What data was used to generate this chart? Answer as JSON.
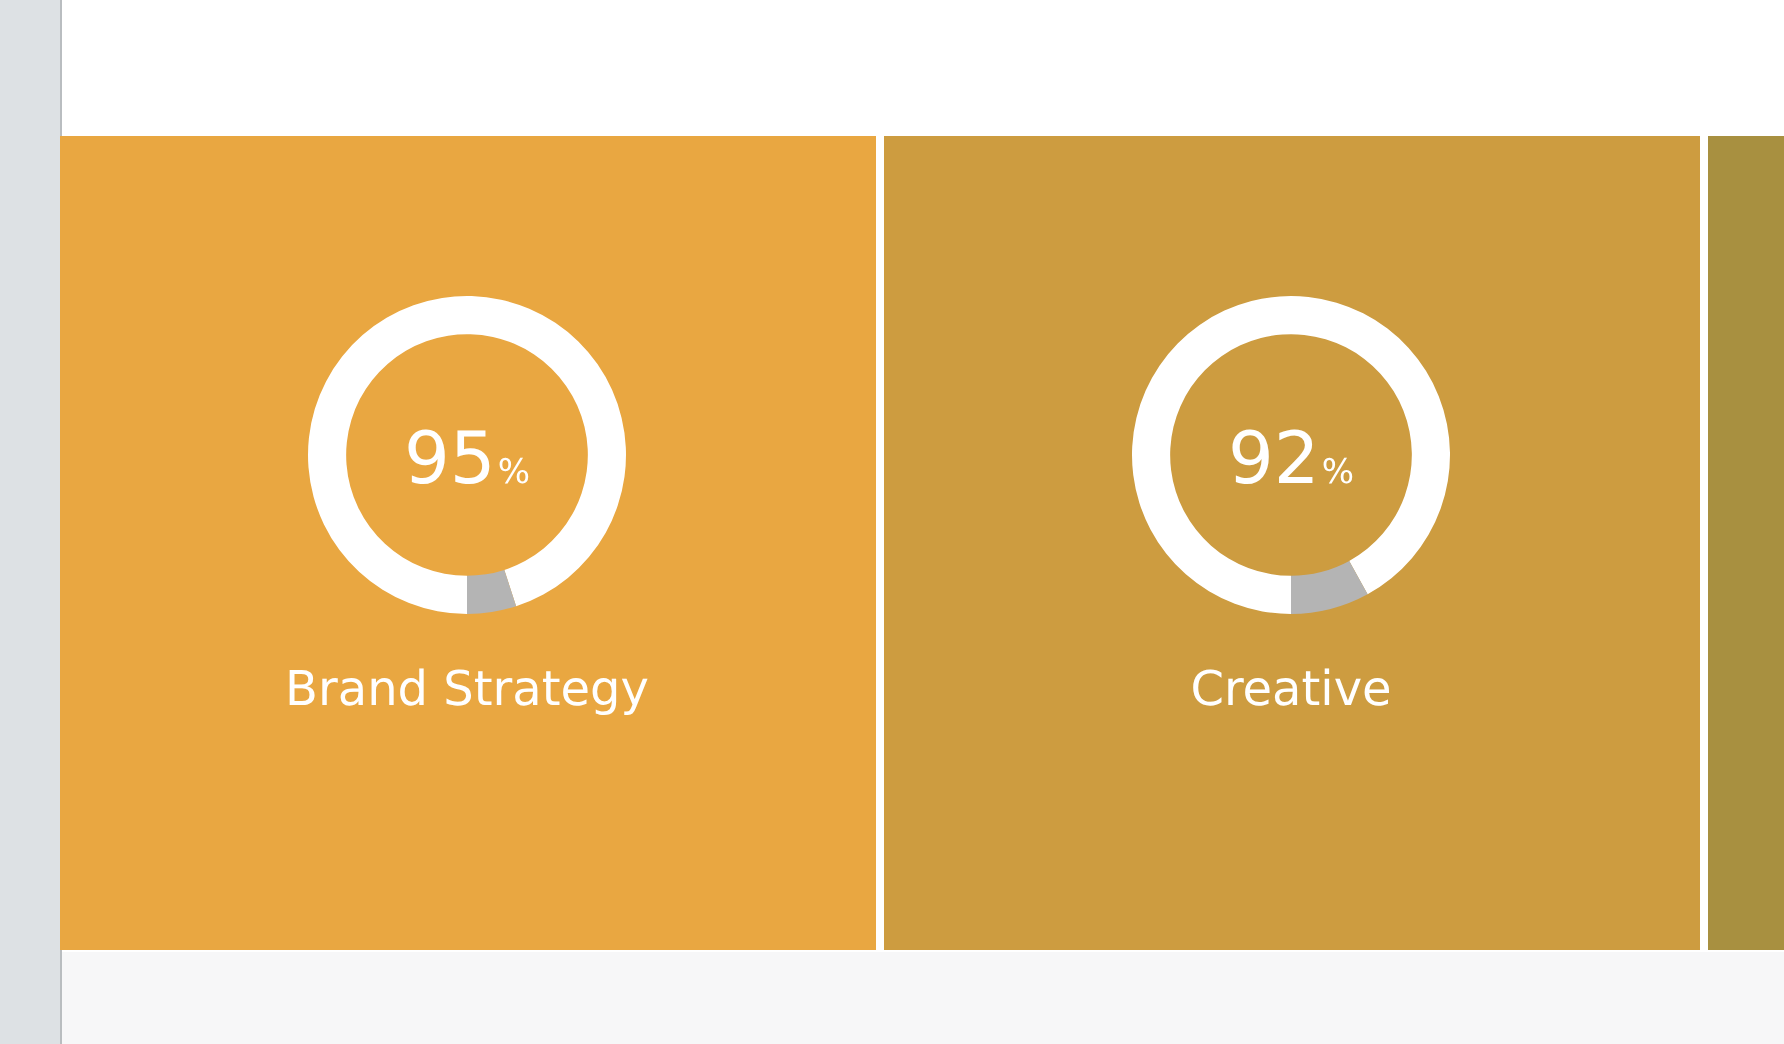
{
  "chart_data": [
    {
      "type": "donut",
      "title": "Brand Strategy",
      "categories": [
        null,
        null
      ],
      "values": [
        95,
        5
      ],
      "colors": [
        "#ffffff",
        "#b4b4b4"
      ],
      "value_labels": [
        "95%",
        null
      ]
    },
    {
      "type": "donut",
      "title": "Creative",
      "categories": [
        null,
        null
      ],
      "values": [
        92,
        8
      ],
      "colors": [
        "#ffffff",
        "#b4b4b4"
      ],
      "value_labels": [
        "92%",
        null
      ]
    }
  ]
}
